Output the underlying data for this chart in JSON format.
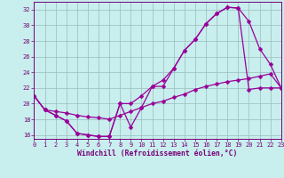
{
  "title": "Windchill (Refroidissement éolien,°C)",
  "background_color": "#c8eeee",
  "line_color": "#990099",
  "grid_color": "#99bbbb",
  "axis_color": "#770077",
  "xlim": [
    0,
    23
  ],
  "ylim": [
    15.5,
    33.0
  ],
  "xticks": [
    0,
    1,
    2,
    3,
    4,
    5,
    6,
    7,
    8,
    9,
    10,
    11,
    12,
    13,
    14,
    15,
    16,
    17,
    18,
    19,
    20,
    21,
    22,
    23
  ],
  "yticks": [
    16,
    18,
    20,
    22,
    24,
    26,
    28,
    30,
    32
  ],
  "line1_x": [
    0,
    1,
    2,
    3,
    4,
    5,
    6,
    7,
    8,
    9,
    10,
    11,
    12,
    13,
    14,
    15,
    16,
    17,
    18,
    19,
    20,
    21,
    22,
    23
  ],
  "line1_y": [
    21.0,
    19.2,
    18.5,
    17.8,
    16.2,
    16.0,
    15.8,
    15.8,
    20.0,
    17.0,
    19.5,
    22.2,
    22.2,
    24.5,
    26.8,
    28.2,
    30.2,
    31.5,
    32.3,
    32.2,
    21.8,
    22.0,
    22.0,
    22.0
  ],
  "line2_x": [
    0,
    1,
    2,
    3,
    4,
    5,
    6,
    7,
    8,
    9,
    10,
    11,
    12,
    13,
    14,
    15,
    16,
    17,
    18,
    19,
    20,
    21,
    22,
    23
  ],
  "line2_y": [
    21.0,
    19.2,
    18.5,
    17.8,
    16.2,
    16.0,
    15.8,
    15.8,
    20.0,
    20.0,
    21.0,
    22.2,
    23.0,
    24.5,
    26.8,
    28.2,
    30.2,
    31.5,
    32.3,
    32.2,
    30.5,
    27.0,
    25.0,
    22.0
  ],
  "line3_x": [
    0,
    1,
    2,
    3,
    4,
    5,
    6,
    7,
    8,
    9,
    10,
    11,
    12,
    13,
    14,
    15,
    16,
    17,
    18,
    19,
    20,
    21,
    22,
    23
  ],
  "line3_y": [
    21.0,
    19.2,
    19.0,
    18.8,
    18.5,
    18.3,
    18.2,
    18.0,
    18.5,
    19.0,
    19.5,
    20.0,
    20.3,
    20.8,
    21.2,
    21.8,
    22.2,
    22.5,
    22.8,
    23.0,
    23.2,
    23.5,
    23.8,
    22.0
  ],
  "marker": "D",
  "markersize": 2.5,
  "linewidth": 0.9,
  "tick_fontsize": 5.0,
  "label_fontsize": 5.8
}
